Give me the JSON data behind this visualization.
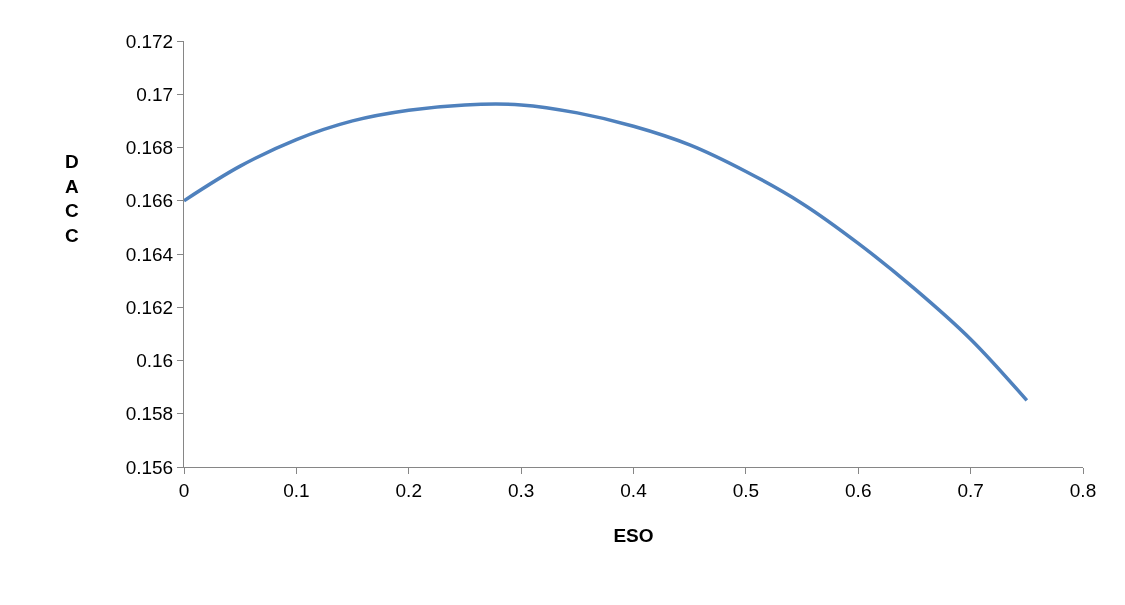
{
  "chart_data": {
    "type": "line",
    "xlabel": "ESO",
    "ylabel": "DACC",
    "x": [
      0,
      0.05,
      0.1,
      0.15,
      0.2,
      0.25,
      0.3,
      0.35,
      0.4,
      0.45,
      0.5,
      0.55,
      0.6,
      0.65,
      0.7,
      0.75
    ],
    "series": [
      {
        "color": "#4f81bd",
        "values": [
          0.166,
          0.1673,
          0.1683,
          0.169,
          0.1694,
          0.1696,
          0.1696,
          0.1693,
          0.1688,
          0.1681,
          0.1671,
          0.1659,
          0.1644,
          0.1627,
          0.1608,
          0.1585
        ]
      }
    ],
    "xlim": [
      0,
      0.8
    ],
    "xticks": [
      0,
      0.1,
      0.2,
      0.3,
      0.4,
      0.5,
      0.6,
      0.7,
      0.8
    ],
    "ylim": [
      0.156,
      0.172
    ],
    "yticks": [
      0.156,
      0.158,
      0.16,
      0.162,
      0.164,
      0.166,
      0.168,
      0.17,
      0.172
    ],
    "marker": "none",
    "line_style": "solid"
  }
}
